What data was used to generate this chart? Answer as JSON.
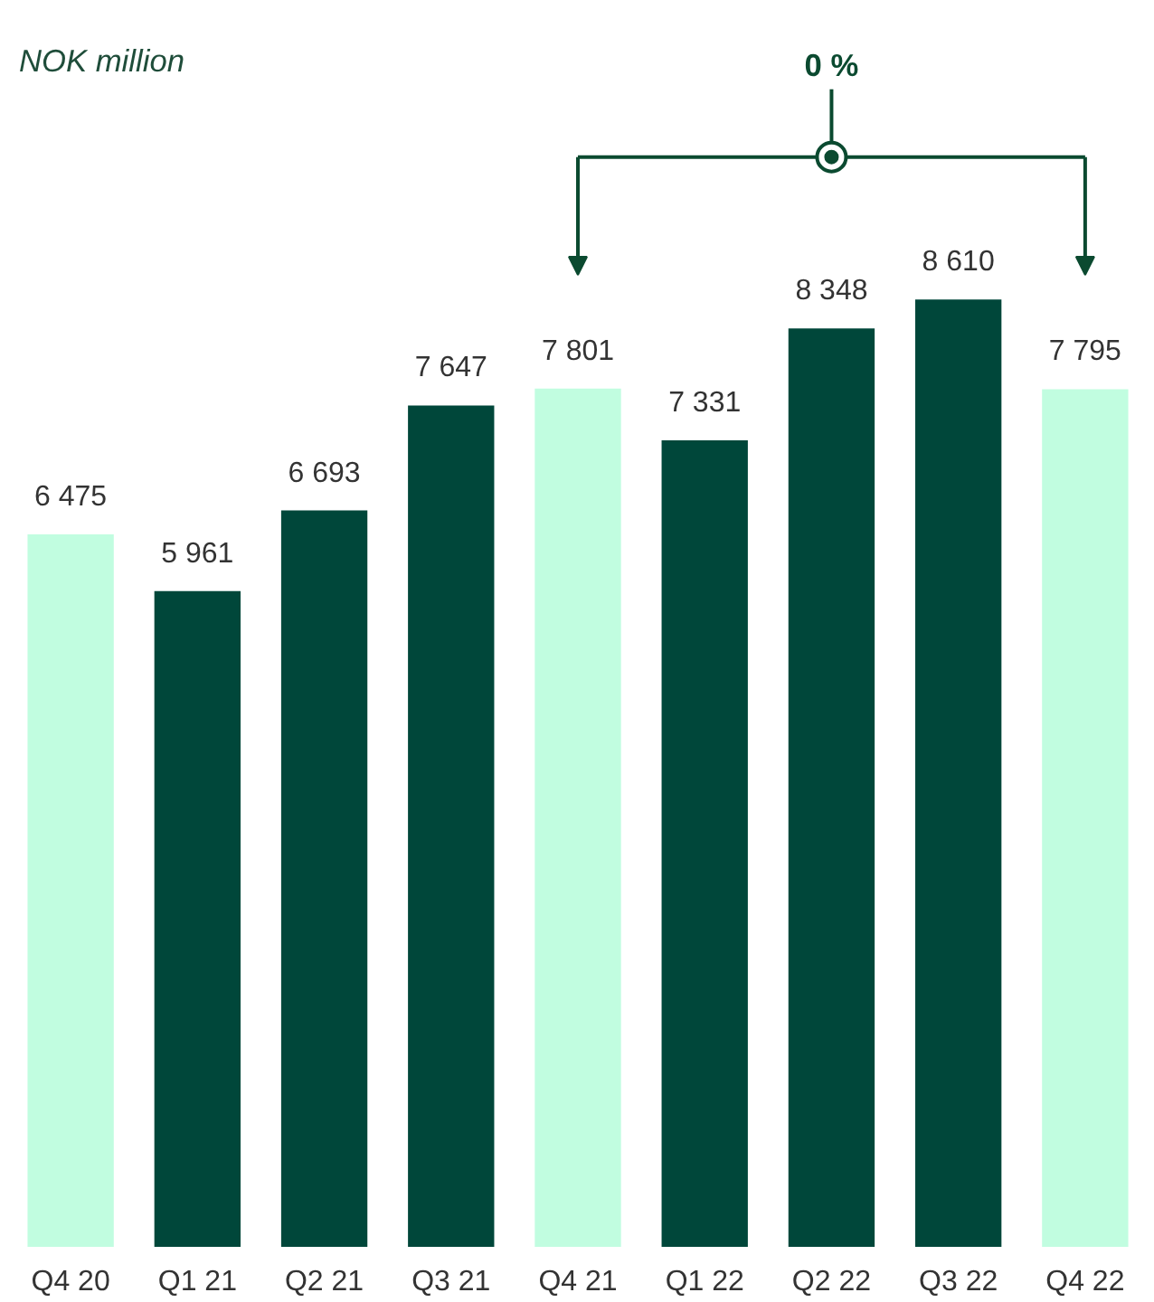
{
  "chart_data": {
    "type": "bar",
    "title": "NOK million",
    "categories": [
      "Q4 20",
      "Q1 21",
      "Q2 21",
      "Q3 21",
      "Q4 21",
      "Q1 22",
      "Q2 22",
      "Q3 22",
      "Q4 22"
    ],
    "values": [
      6475,
      5961,
      6693,
      7647,
      7801,
      7331,
      8348,
      8610,
      7795
    ],
    "colors": [
      "#c1fde0",
      "#00473a",
      "#00473a",
      "#00473a",
      "#c1fde0",
      "#00473a",
      "#00473a",
      "#00473a",
      "#c1fde0"
    ],
    "value_labels": [
      "6 475",
      "5 961",
      "6 693",
      "7 647",
      "7 801",
      "7 331",
      "8 348",
      "8 610",
      "7 795"
    ],
    "annotations": [
      "0 %"
    ]
  }
}
